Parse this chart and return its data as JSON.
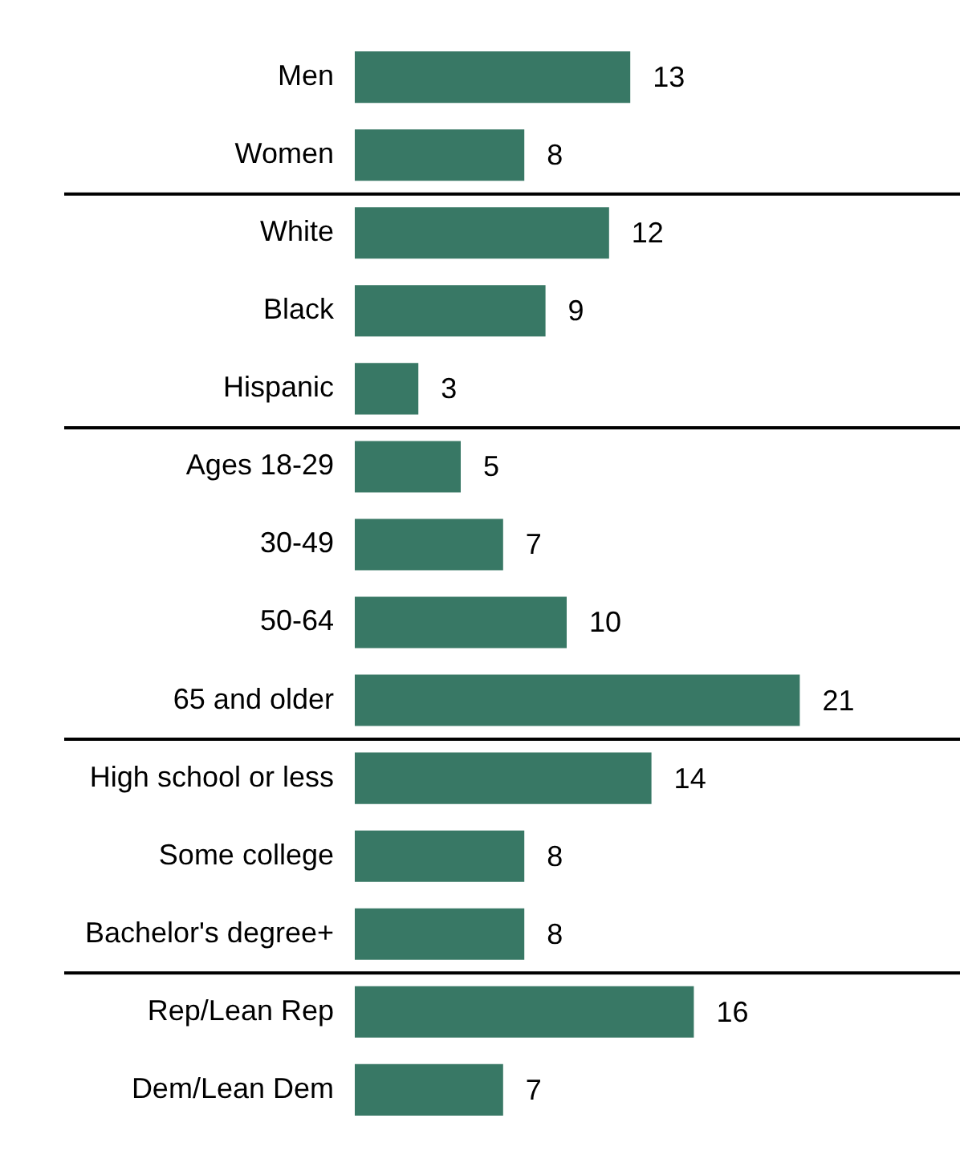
{
  "chart_data": {
    "type": "bar",
    "orientation": "horizontal",
    "data_labels": true,
    "categories": [
      "Men",
      "Women",
      "White",
      "Black",
      "Hispanic",
      "Ages 18-29",
      "30-49",
      "50-64",
      "65 and older",
      "High school or less",
      "Some college",
      "Bachelor's degree+",
      "Rep/Lean Rep",
      "Dem/Lean Dem"
    ],
    "values": [
      13,
      8,
      12,
      9,
      3,
      5,
      7,
      10,
      21,
      14,
      8,
      8,
      16,
      7
    ],
    "color": "#387865",
    "grid": false,
    "legend": false
  }
}
